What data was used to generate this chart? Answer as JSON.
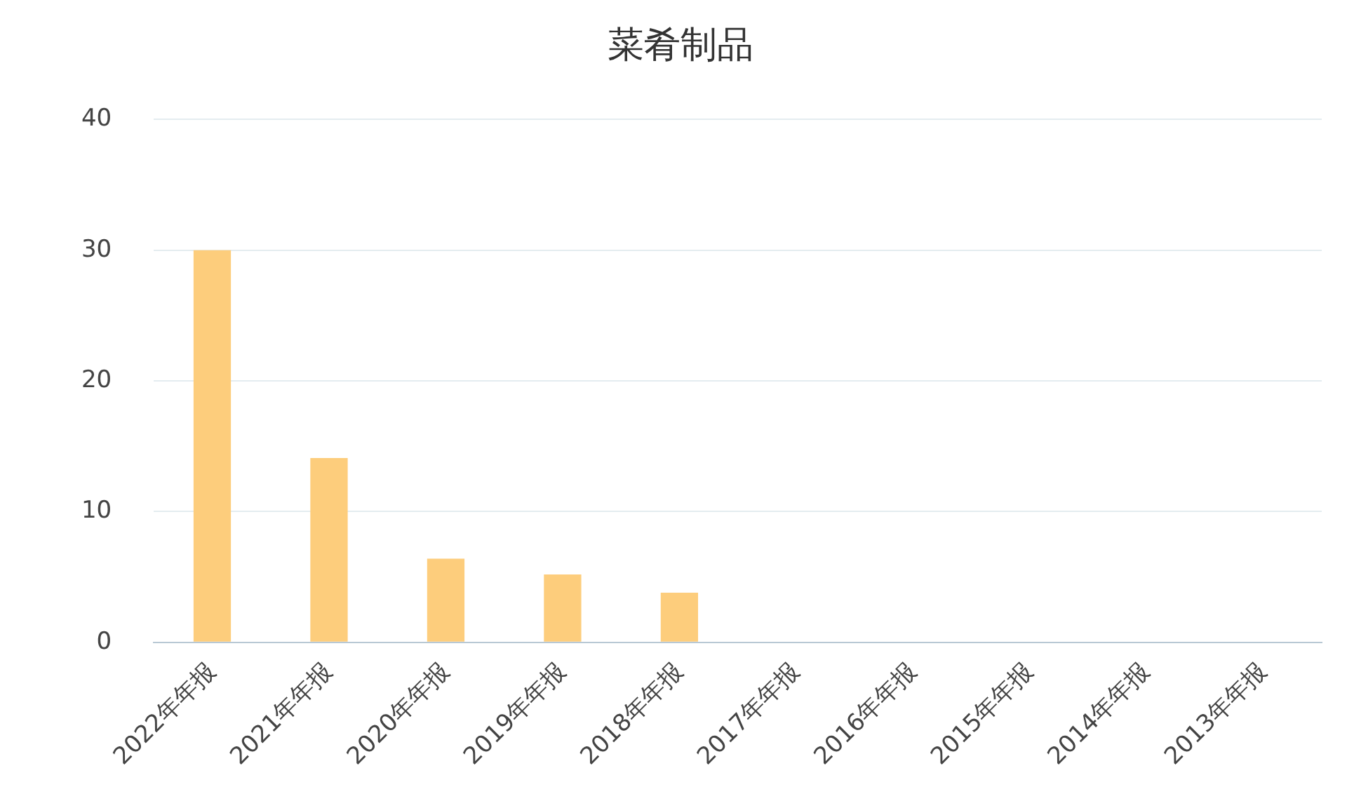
{
  "chart_data": {
    "type": "bar",
    "title": "菜肴制品",
    "categories": [
      "2022年年报",
      "2021年年报",
      "2020年年报",
      "2019年年报",
      "2018年年报",
      "2017年年报",
      "2016年年报",
      "2015年年报",
      "2014年年报",
      "2013年年报"
    ],
    "values": [
      30,
      14.1,
      6.4,
      5.2,
      3.8,
      null,
      null,
      null,
      null,
      null
    ],
    "color": "#fdcd7c",
    "ylim": [
      0,
      40
    ],
    "yticks": [
      0,
      10,
      20,
      30,
      40
    ],
    "grid": "y",
    "legend": false
  }
}
